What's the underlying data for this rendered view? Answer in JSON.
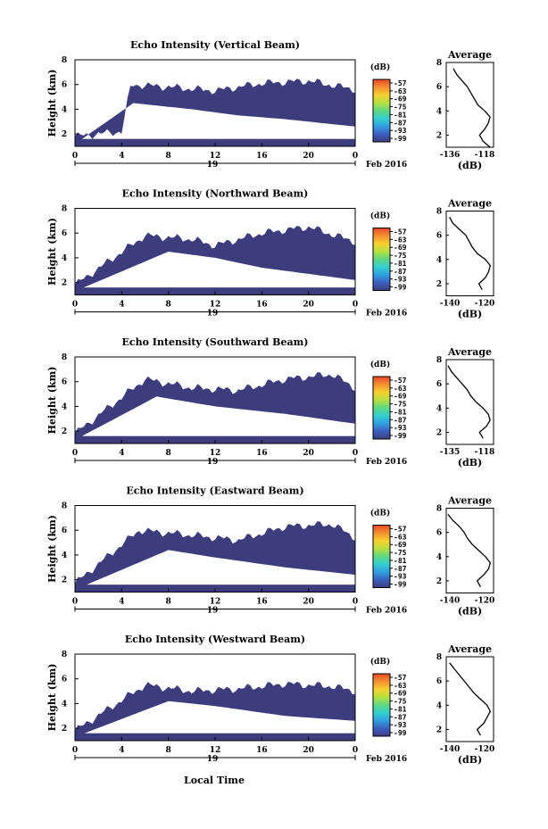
{
  "figure": {
    "x_axis_title": "Local Time",
    "date_label": "Feb 2016",
    "day_label": "19",
    "colorbar_unit": "(dB)",
    "colorbar_ticks": [
      "-57",
      "-63",
      "-69",
      "-75",
      "-81",
      "-87",
      "-93",
      "-99"
    ],
    "avg_title": "Average",
    "avg_unit": "(dB)",
    "colors": {
      "echo_min": "#3d3d7e",
      "colormap": [
        "#3d3d7e",
        "#3b5fc0",
        "#2f9fe0",
        "#35d0d0",
        "#5fd880",
        "#b8e040",
        "#f5d030",
        "#f59030",
        "#e84828"
      ]
    }
  },
  "chart_data": [
    {
      "type": "heatmap",
      "title": "Echo Intensity (Vertical Beam)",
      "ylabel": "Height (km)",
      "x_ticks": [
        "0",
        "4",
        "8",
        "12",
        "16",
        "20",
        "0"
      ],
      "y_ticks": [
        "2",
        "4",
        "6",
        "8"
      ],
      "xlim": [
        0,
        24
      ],
      "ylim": [
        1,
        8
      ],
      "colorbar_range": [
        -99,
        -57
      ],
      "echo_top_km": [
        [
          0,
          1.8
        ],
        [
          4,
          2.2
        ],
        [
          4.8,
          6.0
        ],
        [
          8,
          5.8
        ],
        [
          12,
          5.5
        ],
        [
          16,
          6.1
        ],
        [
          20,
          6.3
        ],
        [
          24,
          5.6
        ]
      ],
      "echo_bottom_km": [
        [
          0,
          1.2
        ],
        [
          5,
          4.5
        ],
        [
          10,
          4.0
        ],
        [
          14,
          3.5
        ],
        [
          18,
          3.2
        ],
        [
          24,
          2.6
        ]
      ],
      "average": {
        "xlabel": "(dB)",
        "x_ticks": [
          "-136",
          "-118"
        ],
        "y_ticks": [
          "2",
          "4",
          "6",
          "8"
        ],
        "x_range": [
          -140,
          -113
        ],
        "y_range": [
          1,
          8
        ],
        "height_km": [
          1.0,
          1.5,
          2.0,
          2.5,
          3.0,
          3.5,
          4.0,
          4.5,
          5.0,
          5.5,
          6.0,
          6.5,
          7.0,
          7.5
        ],
        "value_db": [
          -115,
          -119,
          -121,
          -118,
          -116,
          -115,
          -118,
          -122,
          -124,
          -126,
          -128,
          -131,
          -134,
          -136
        ]
      }
    },
    {
      "type": "heatmap",
      "title": "Echo Intensity (Northward Beam)",
      "ylabel": "Height (km)",
      "x_ticks": [
        "0",
        "4",
        "8",
        "12",
        "16",
        "20",
        "0"
      ],
      "y_ticks": [
        "2",
        "4",
        "6",
        "8"
      ],
      "xlim": [
        0,
        24
      ],
      "ylim": [
        1,
        8
      ],
      "colorbar_range": [
        -99,
        -57
      ],
      "echo_top_km": [
        [
          0,
          1.8
        ],
        [
          6,
          5.8
        ],
        [
          10,
          5.5
        ],
        [
          12,
          5.0
        ],
        [
          16,
          6.0
        ],
        [
          20,
          6.5
        ],
        [
          24,
          5.3
        ]
      ],
      "echo_bottom_km": [
        [
          0,
          1.3
        ],
        [
          8,
          4.5
        ],
        [
          12,
          4.0
        ],
        [
          16,
          3.2
        ],
        [
          24,
          2.2
        ]
      ],
      "average": {
        "xlabel": "(dB)",
        "x_ticks": [
          "-140",
          "-120"
        ],
        "y_ticks": [
          "2",
          "4",
          "6",
          "8"
        ],
        "x_range": [
          -142,
          -113
        ],
        "y_range": [
          1,
          8
        ],
        "height_km": [
          1.5,
          2.0,
          2.5,
          3.0,
          3.5,
          4.0,
          4.5,
          5.0,
          5.5,
          6.0,
          6.5,
          7.0,
          7.5
        ],
        "value_db": [
          -120,
          -122,
          -118,
          -116,
          -115,
          -118,
          -123,
          -126,
          -128,
          -130,
          -134,
          -138,
          -140
        ]
      }
    },
    {
      "type": "heatmap",
      "title": "Echo Intensity (Southward Beam)",
      "ylabel": "Height (km)",
      "x_ticks": [
        "0",
        "4",
        "8",
        "12",
        "16",
        "20",
        "0"
      ],
      "y_ticks": [
        "2",
        "4",
        "6",
        "8"
      ],
      "xlim": [
        0,
        24
      ],
      "ylim": [
        1,
        8
      ],
      "colorbar_range": [
        -99,
        -57
      ],
      "echo_top_km": [
        [
          0,
          1.8
        ],
        [
          6,
          6.2
        ],
        [
          10,
          5.5
        ],
        [
          14,
          5.3
        ],
        [
          18,
          6.2
        ],
        [
          22,
          6.6
        ],
        [
          24,
          5.5
        ]
      ],
      "echo_bottom_km": [
        [
          0,
          1.3
        ],
        [
          7,
          4.8
        ],
        [
          12,
          4.0
        ],
        [
          18,
          3.4
        ],
        [
          24,
          2.6
        ]
      ],
      "average": {
        "xlabel": "(dB)",
        "x_ticks": [
          "-135",
          "-118"
        ],
        "y_ticks": [
          "2",
          "4",
          "6",
          "8"
        ],
        "x_range": [
          -140,
          -113
        ],
        "y_range": [
          1,
          8
        ],
        "height_km": [
          1.5,
          2.0,
          2.5,
          3.0,
          3.5,
          4.0,
          4.5,
          5.0,
          5.5,
          6.0,
          6.5,
          7.0,
          7.5
        ],
        "value_db": [
          -119,
          -121,
          -117,
          -115,
          -116,
          -119,
          -123,
          -126,
          -128,
          -131,
          -134,
          -137,
          -139
        ]
      }
    },
    {
      "type": "heatmap",
      "title": "Echo Intensity (Eastward Beam)",
      "ylabel": "Height (km)",
      "x_ticks": [
        "0",
        "4",
        "8",
        "12",
        "16",
        "20",
        "0"
      ],
      "y_ticks": [
        "2",
        "4",
        "6",
        "8"
      ],
      "xlim": [
        0,
        24
      ],
      "ylim": [
        1,
        8
      ],
      "colorbar_range": [
        -99,
        -57
      ],
      "echo_top_km": [
        [
          0,
          1.7
        ],
        [
          5.5,
          6.0
        ],
        [
          10,
          5.6
        ],
        [
          14,
          5.2
        ],
        [
          18,
          6.3
        ],
        [
          22,
          6.5
        ],
        [
          24,
          5.4
        ]
      ],
      "echo_bottom_km": [
        [
          0,
          1.2
        ],
        [
          8,
          4.4
        ],
        [
          12,
          3.8
        ],
        [
          18,
          3.0
        ],
        [
          24,
          2.4
        ]
      ],
      "average": {
        "xlabel": "(dB)",
        "x_ticks": [
          "-140",
          "-120"
        ],
        "y_ticks": [
          "2",
          "4",
          "6",
          "8"
        ],
        "x_range": [
          -142,
          -113
        ],
        "y_range": [
          1,
          8
        ],
        "height_km": [
          1.5,
          2.0,
          2.5,
          3.0,
          3.5,
          4.0,
          4.5,
          5.0,
          5.5,
          6.0,
          6.5,
          7.0,
          7.5
        ],
        "value_db": [
          -121,
          -123,
          -119,
          -116,
          -115,
          -118,
          -122,
          -126,
          -129,
          -131,
          -134,
          -138,
          -141
        ]
      }
    },
    {
      "type": "heatmap",
      "title": "Echo Intensity (Westward Beam)",
      "ylabel": "Height (km)",
      "x_ticks": [
        "0",
        "4",
        "8",
        "12",
        "16",
        "20",
        "0"
      ],
      "y_ticks": [
        "2",
        "4",
        "6",
        "8"
      ],
      "xlim": [
        0,
        24
      ],
      "ylim": [
        1,
        8
      ],
      "colorbar_range": [
        -99,
        -57
      ],
      "echo_top_km": [
        [
          0,
          1.8
        ],
        [
          6,
          5.5
        ],
        [
          10,
          5.0
        ],
        [
          14,
          5.2
        ],
        [
          18,
          5.6
        ],
        [
          22,
          5.4
        ],
        [
          24,
          5.0
        ]
      ],
      "echo_bottom_km": [
        [
          0,
          1.3
        ],
        [
          8,
          4.2
        ],
        [
          12,
          3.8
        ],
        [
          18,
          3.0
        ],
        [
          24,
          2.6
        ]
      ],
      "average": {
        "xlabel": "(dB)",
        "x_ticks": [
          "-140",
          "-120"
        ],
        "y_ticks": [
          "2",
          "4",
          "6",
          "8"
        ],
        "x_range": [
          -142,
          -113
        ],
        "y_range": [
          1,
          8
        ],
        "height_km": [
          1.5,
          2.0,
          2.5,
          3.0,
          3.5,
          4.0,
          4.5,
          5.0,
          5.5,
          6.0,
          6.5,
          7.0,
          7.5
        ],
        "value_db": [
          -121,
          -123,
          -119,
          -117,
          -115,
          -117,
          -121,
          -125,
          -128,
          -131,
          -134,
          -137,
          -140
        ]
      }
    }
  ]
}
